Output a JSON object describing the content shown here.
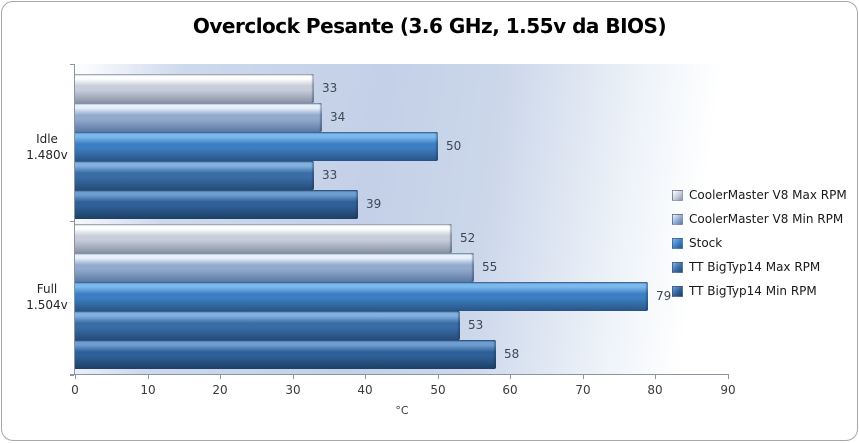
{
  "chart_data": {
    "type": "bar",
    "orientation": "horizontal",
    "title": "Overclock Pesante (3.6 GHz, 1.55v da BIOS)",
    "categories": [
      {
        "line1": "Idle",
        "line2": "1.480v"
      },
      {
        "line1": "Full",
        "line2": "1.504v"
      }
    ],
    "series": [
      {
        "name": "CoolerMaster V8 Max RPM",
        "values": [
          33,
          52
        ],
        "color_light": "#fdfdfe",
        "color_main": "#c7cdda",
        "color_dark": "#8e96a8"
      },
      {
        "name": "CoolerMaster V8 Min RPM",
        "values": [
          34,
          55
        ],
        "color_light": "#e8f0fa",
        "color_main": "#93aacf",
        "color_dark": "#5f7da5"
      },
      {
        "name": "Stock",
        "values": [
          50,
          79
        ],
        "color_light": "#7cb8ec",
        "color_main": "#3c7ec2",
        "color_dark": "#2a588a"
      },
      {
        "name": "TT BigTyp14 Max RPM",
        "values": [
          33,
          53
        ],
        "color_light": "#82b1e0",
        "color_main": "#3a6da6",
        "color_dark": "#274e7b"
      },
      {
        "name": "TT BigTyp14 Min RPM",
        "values": [
          39,
          58
        ],
        "color_light": "#6e9ed1",
        "color_main": "#2f5f97",
        "color_dark": "#1e4268"
      }
    ],
    "xlabel": "°C",
    "xlim": [
      0,
      90
    ],
    "xticks": [
      0,
      10,
      20,
      30,
      40,
      50,
      60,
      70,
      80,
      90
    ],
    "legend_position": "right",
    "data_labels_shown": true,
    "grid": false
  },
  "colors": {
    "axis": "#8b94a3",
    "tick_label": "#3a3a3a",
    "data_label": "#3d4758",
    "title_text": "#000000",
    "chart_border": "#a8a8a8",
    "plot_gradient_left": "#ffffff",
    "plot_gradient_mid": "#c3d0e7",
    "plot_gradient_right": "#ffffff"
  }
}
